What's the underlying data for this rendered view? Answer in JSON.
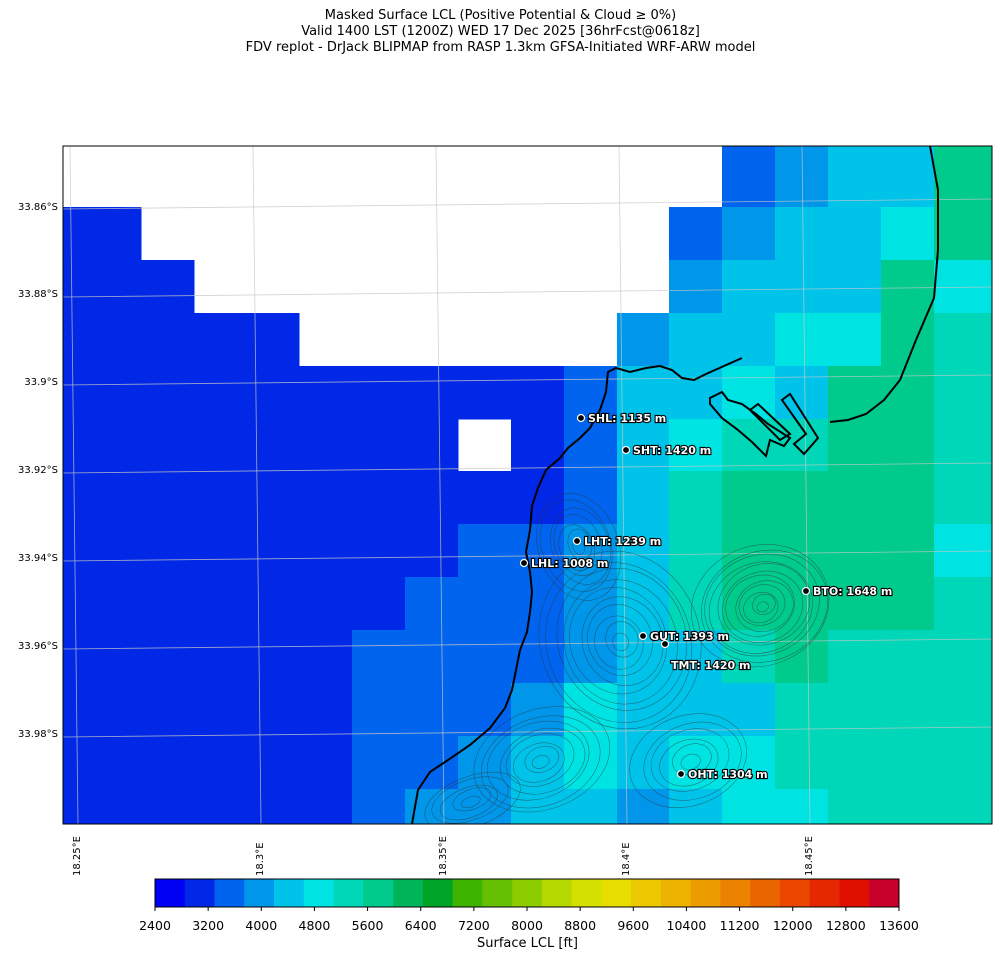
{
  "title": {
    "line1": "Masked Surface LCL (Positive Potential & Cloud ≥ 0%)",
    "line2": "Valid 1400 LST (1200Z) WED 17 Dec 2025 [36hrFcst@0618z]",
    "line3": "FDV replot - DrJack BLIPMAP from RASP 1.3km GFSA-Initiated WRF-ARW model"
  },
  "axes": {
    "lat_labels": [
      "33.86°S",
      "33.88°S",
      "33.9°S",
      "33.92°S",
      "33.94°S",
      "33.96°S",
      "33.98°S"
    ],
    "lon_labels": [
      "18.25°E",
      "18.3°E",
      "18.35°E",
      "18.4°E",
      "18.45°E"
    ]
  },
  "stations": [
    {
      "id": "SHL",
      "label": "SHL: 1135 m"
    },
    {
      "id": "SHT",
      "label": "SHT: 1420 m"
    },
    {
      "id": "LHT",
      "label": "LHT: 1239 m"
    },
    {
      "id": "LHL",
      "label": "LHL: 1008 m"
    },
    {
      "id": "BTO",
      "label": "BTO: 1648 m"
    },
    {
      "id": "GUT",
      "label": "GUT: 1393 m"
    },
    {
      "id": "TMT",
      "label": "TMT: 1420 m"
    },
    {
      "id": "OHT",
      "label": "OHT: 1304 m"
    }
  ],
  "colorbar": {
    "label": "Surface LCL [ft]",
    "ticks": [
      "2400",
      "3200",
      "4000",
      "4800",
      "5600",
      "6400",
      "7200",
      "8000",
      "8800",
      "9600",
      "10400",
      "11200",
      "12000",
      "12800",
      "13600"
    ],
    "colors": [
      "#0000f5",
      "#0028e6",
      "#0064ef",
      "#0096ea",
      "#00c3ea",
      "#00e3e3",
      "#00d7b8",
      "#00cb8c",
      "#00b45a",
      "#00a528",
      "#3cb400",
      "#64c000",
      "#8ccc00",
      "#b4d800",
      "#d4e000",
      "#e6de00",
      "#ecc800",
      "#ecb400",
      "#ec9c00",
      "#ec8200",
      "#ea6400",
      "#ea4600",
      "#e62800",
      "#e01000",
      "#c8002c"
    ]
  }
}
